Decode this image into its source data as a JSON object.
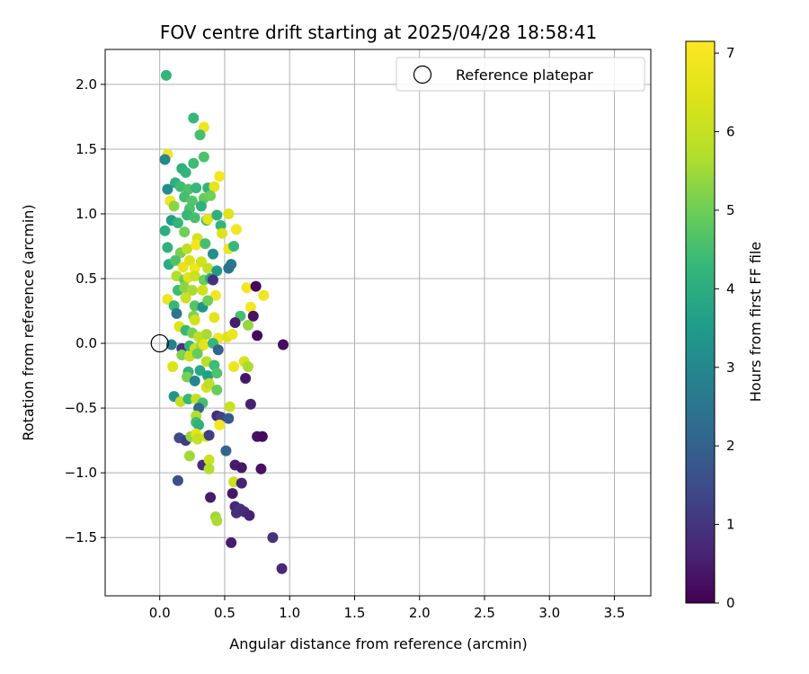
{
  "chart_data": {
    "type": "scatter",
    "title": "FOV centre drift starting at 2025/04/28 18:58:41",
    "xlabel": "Angular distance from reference (arcmin)",
    "ylabel": "Rotation from reference (arcmin)",
    "xlim": [
      -0.42,
      3.78
    ],
    "ylim": [
      -1.95,
      2.27
    ],
    "x_ticks": [
      "0.0",
      "0.5",
      "1.0",
      "1.5",
      "2.0",
      "2.5",
      "3.0",
      "3.5"
    ],
    "y_ticks": [
      "−1.5",
      "−1.0",
      "−0.5",
      "0.0",
      "0.5",
      "1.0",
      "1.5",
      "2.0"
    ],
    "grid": true,
    "legend": {
      "placement": "top-right",
      "entries": [
        "Reference platepar"
      ]
    },
    "reference": {
      "x": 0.0,
      "y": 0.0,
      "label": "Reference platepar"
    },
    "colorbar": {
      "label": "Hours from first FF file",
      "min": 0,
      "max": 7.15,
      "ticks": [
        "0",
        "1",
        "2",
        "3",
        "4",
        "5",
        "6",
        "7"
      ],
      "colormap": "viridis"
    },
    "points": [
      [
        0.05,
        2.07,
        4.2
      ],
      [
        0.26,
        1.74,
        4.3
      ],
      [
        0.34,
        1.67,
        6.8
      ],
      [
        0.31,
        1.61,
        4.5
      ],
      [
        0.06,
        1.46,
        6.9
      ],
      [
        0.04,
        1.42,
        3.0
      ],
      [
        0.34,
        1.44,
        4.6
      ],
      [
        0.17,
        1.35,
        4.1
      ],
      [
        0.2,
        1.32,
        4.2
      ],
      [
        0.26,
        1.39,
        4.4
      ],
      [
        0.46,
        1.29,
        7.0
      ],
      [
        0.12,
        1.24,
        4.1
      ],
      [
        0.06,
        1.19,
        3.2
      ],
      [
        0.16,
        1.21,
        4.4
      ],
      [
        0.22,
        1.19,
        4.6
      ],
      [
        0.28,
        1.2,
        4.3
      ],
      [
        0.37,
        1.2,
        4.2
      ],
      [
        0.42,
        1.21,
        6.7
      ],
      [
        0.08,
        1.1,
        6.9
      ],
      [
        0.11,
        1.06,
        5.3
      ],
      [
        0.19,
        1.13,
        4.5
      ],
      [
        0.25,
        1.1,
        4.7
      ],
      [
        0.34,
        1.12,
        4.9
      ],
      [
        0.39,
        1.14,
        5.0
      ],
      [
        0.23,
        1.04,
        4.6
      ],
      [
        0.32,
        1.06,
        4.1
      ],
      [
        0.09,
        0.95,
        3.6
      ],
      [
        0.14,
        0.93,
        4.2
      ],
      [
        0.21,
        0.99,
        4.3
      ],
      [
        0.27,
        0.97,
        4.5
      ],
      [
        0.36,
        0.95,
        4.4
      ],
      [
        0.37,
        0.96,
        6.6
      ],
      [
        0.44,
        0.99,
        4.1
      ],
      [
        0.53,
        1.0,
        6.5
      ],
      [
        0.47,
        0.91,
        4.2
      ],
      [
        0.04,
        0.87,
        4.0
      ],
      [
        0.19,
        0.86,
        5.0
      ],
      [
        0.29,
        0.81,
        6.3
      ],
      [
        0.48,
        0.85,
        6.4
      ],
      [
        0.59,
        0.88,
        6.9
      ],
      [
        0.06,
        0.74,
        4.1
      ],
      [
        0.16,
        0.7,
        5.1
      ],
      [
        0.21,
        0.73,
        5.9
      ],
      [
        0.28,
        0.76,
        6.9
      ],
      [
        0.35,
        0.77,
        4.5
      ],
      [
        0.41,
        0.69,
        3.2
      ],
      [
        0.53,
        0.73,
        6.8
      ],
      [
        0.57,
        0.75,
        4.3
      ],
      [
        0.07,
        0.61,
        4.0
      ],
      [
        0.12,
        0.64,
        4.6
      ],
      [
        0.18,
        0.59,
        6.7
      ],
      [
        0.23,
        0.64,
        6.4
      ],
      [
        0.27,
        0.58,
        6.9
      ],
      [
        0.32,
        0.63,
        6.2
      ],
      [
        0.37,
        0.58,
        6.0
      ],
      [
        0.44,
        0.56,
        3.5
      ],
      [
        0.55,
        0.61,
        2.7
      ],
      [
        0.53,
        0.58,
        2.4
      ],
      [
        0.13,
        0.52,
        5.7
      ],
      [
        0.19,
        0.49,
        4.9
      ],
      [
        0.22,
        0.51,
        6.5
      ],
      [
        0.27,
        0.52,
        6.1
      ],
      [
        0.34,
        0.49,
        5.0
      ],
      [
        0.39,
        0.5,
        3.9
      ],
      [
        0.41,
        0.49,
        0.9
      ],
      [
        0.06,
        0.34,
        6.8
      ],
      [
        0.14,
        0.41,
        4.4
      ],
      [
        0.19,
        0.43,
        5.3
      ],
      [
        0.25,
        0.41,
        5.6
      ],
      [
        0.33,
        0.41,
        6.2
      ],
      [
        0.43,
        0.37,
        6.9
      ],
      [
        0.67,
        0.43,
        7.0
      ],
      [
        0.74,
        0.44,
        0.1
      ],
      [
        0.8,
        0.37,
        6.9
      ],
      [
        0.11,
        0.29,
        4.3
      ],
      [
        0.2,
        0.35,
        6.1
      ],
      [
        0.27,
        0.29,
        4.7
      ],
      [
        0.33,
        0.28,
        3.3
      ],
      [
        0.37,
        0.33,
        5.0
      ],
      [
        0.7,
        0.28,
        7.0
      ],
      [
        0.72,
        0.21,
        0.3
      ],
      [
        0.13,
        0.23,
        2.5
      ],
      [
        0.26,
        0.21,
        5.2
      ],
      [
        0.42,
        0.2,
        6.6
      ],
      [
        0.62,
        0.21,
        4.5
      ],
      [
        0.58,
        0.16,
        0.5
      ],
      [
        0.15,
        0.13,
        6.5
      ],
      [
        0.2,
        0.1,
        4.3
      ],
      [
        0.27,
        0.18,
        6.2
      ],
      [
        0.68,
        0.14,
        5.4
      ],
      [
        0.25,
        0.08,
        5.1
      ],
      [
        0.3,
        0.05,
        5.9
      ],
      [
        0.36,
        0.07,
        5.6
      ],
      [
        0.45,
        0.04,
        6.9
      ],
      [
        0.52,
        0.05,
        6.5
      ],
      [
        0.56,
        0.07,
        6.8
      ],
      [
        0.75,
        0.06,
        0.2
      ],
      [
        0.09,
        -0.01,
        2.8
      ],
      [
        0.17,
        -0.04,
        1.0
      ],
      [
        0.23,
        -0.02,
        4.2
      ],
      [
        0.27,
        -0.04,
        6.0
      ],
      [
        0.32,
        -0.02,
        5.5
      ],
      [
        0.34,
        -0.01,
        6.6
      ],
      [
        0.41,
        0.0,
        4.3
      ],
      [
        0.45,
        -0.05,
        2.0
      ],
      [
        0.95,
        -0.01,
        0.2
      ],
      [
        0.17,
        -0.09,
        5.2
      ],
      [
        0.23,
        -0.1,
        6.1
      ],
      [
        0.29,
        -0.08,
        4.9
      ],
      [
        0.36,
        -0.14,
        5.8
      ],
      [
        0.42,
        -0.17,
        4.4
      ],
      [
        0.57,
        -0.18,
        6.8
      ],
      [
        0.65,
        -0.14,
        6.3
      ],
      [
        0.68,
        -0.18,
        5.6
      ],
      [
        0.1,
        -0.18,
        6.4
      ],
      [
        0.22,
        -0.22,
        4.1
      ],
      [
        0.31,
        -0.21,
        3.9
      ],
      [
        0.37,
        -0.25,
        3.6
      ],
      [
        0.44,
        -0.23,
        4.6
      ],
      [
        0.66,
        -0.27,
        0.4
      ],
      [
        0.21,
        -0.26,
        5.1
      ],
      [
        0.27,
        -0.29,
        2.9
      ],
      [
        0.36,
        -0.34,
        6.3
      ],
      [
        0.38,
        -0.31,
        5.9
      ],
      [
        0.44,
        -0.36,
        4.9
      ],
      [
        0.11,
        -0.41,
        3.3
      ],
      [
        0.16,
        -0.45,
        6.0
      ],
      [
        0.22,
        -0.43,
        4.3
      ],
      [
        0.28,
        -0.43,
        6.0
      ],
      [
        0.33,
        -0.46,
        4.5
      ],
      [
        0.3,
        -0.5,
        2.1
      ],
      [
        0.54,
        -0.49,
        6.1
      ],
      [
        0.7,
        -0.47,
        0.6
      ],
      [
        0.44,
        -0.56,
        0.8
      ],
      [
        0.47,
        -0.57,
        1.3
      ],
      [
        0.53,
        -0.58,
        1.8
      ],
      [
        0.28,
        -0.56,
        5.7
      ],
      [
        0.28,
        -0.61,
        4.4
      ],
      [
        0.3,
        -0.63,
        4.1
      ],
      [
        0.46,
        -0.63,
        6.9
      ],
      [
        0.15,
        -0.73,
        1.5
      ],
      [
        0.2,
        -0.75,
        1.1
      ],
      [
        0.24,
        -0.72,
        5.4
      ],
      [
        0.28,
        -0.7,
        6.6
      ],
      [
        0.29,
        -0.74,
        6.0
      ],
      [
        0.36,
        -0.72,
        6.3
      ],
      [
        0.38,
        -0.71,
        1.2
      ],
      [
        0.75,
        -0.72,
        0.3
      ],
      [
        0.79,
        -0.72,
        0.2
      ],
      [
        0.51,
        -0.83,
        2.1
      ],
      [
        0.23,
        -0.87,
        5.5
      ],
      [
        0.33,
        -0.94,
        0.8
      ],
      [
        0.38,
        -0.9,
        6.1
      ],
      [
        0.38,
        -0.97,
        5.7
      ],
      [
        0.58,
        -0.94,
        0.5
      ],
      [
        0.63,
        -0.96,
        0.4
      ],
      [
        0.78,
        -0.97,
        0.3
      ],
      [
        0.14,
        -1.06,
        1.6
      ],
      [
        0.57,
        -1.07,
        6.1
      ],
      [
        0.63,
        -1.08,
        0.6
      ],
      [
        0.39,
        -1.19,
        0.5
      ],
      [
        0.56,
        -1.16,
        0.4
      ],
      [
        0.58,
        -1.26,
        0.7
      ],
      [
        0.62,
        -1.28,
        0.9
      ],
      [
        0.59,
        -1.31,
        0.9
      ],
      [
        0.65,
        -1.3,
        0.8
      ],
      [
        0.69,
        -1.33,
        0.6
      ],
      [
        0.43,
        -1.34,
        5.5
      ],
      [
        0.44,
        -1.37,
        5.6
      ],
      [
        0.55,
        -1.54,
        0.5
      ],
      [
        0.87,
        -1.5,
        0.9
      ],
      [
        0.94,
        -1.74,
        0.7
      ]
    ]
  }
}
